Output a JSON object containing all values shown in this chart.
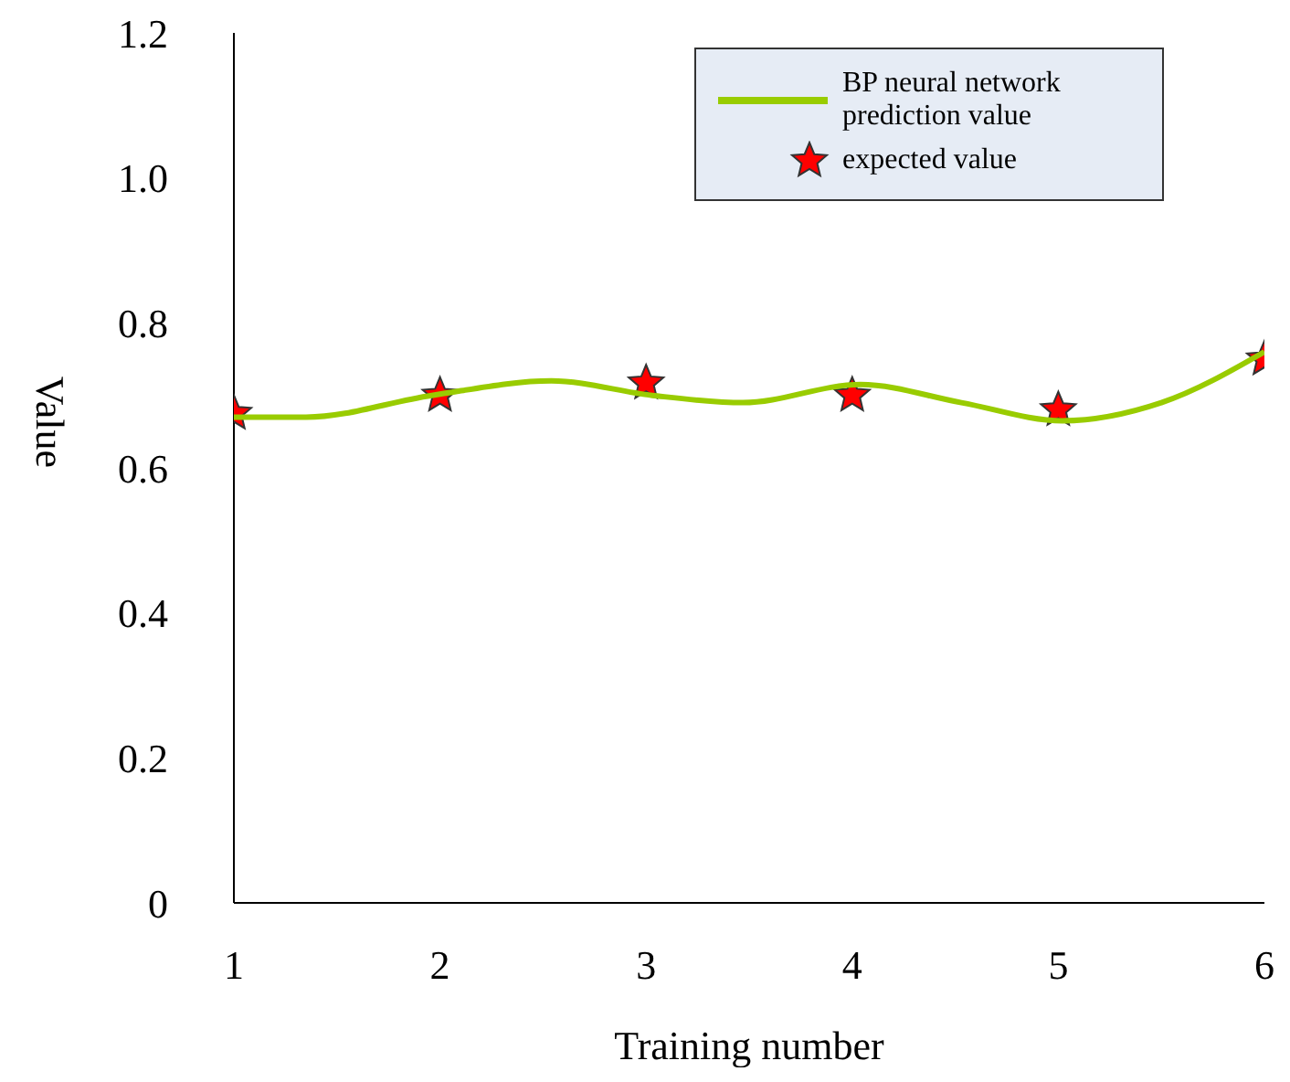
{
  "chart_data": {
    "type": "line",
    "xlabel": "Training number",
    "ylabel": "Value",
    "xlim": [
      1,
      6
    ],
    "xticks": [
      1,
      2,
      3,
      4,
      5,
      6
    ],
    "ylim": [
      0,
      1.2
    ],
    "yticks": [
      0,
      {
        "value": 0.2,
        "label": "0.2"
      },
      {
        "value": 0.4,
        "label": "0.4"
      },
      {
        "value": 0.6,
        "label": "0.6"
      },
      {
        "value": 0.8,
        "label": "0.8"
      },
      {
        "value": 1,
        "label": "1.0"
      },
      {
        "value": 1.2,
        "label": "1.2"
      }
    ],
    "legend": "top right",
    "series": [
      {
        "name": "BP neural network prediction value",
        "color": "#99cc00",
        "marker": "none",
        "x": [
          1,
          1.35,
          1.96,
          2.54,
          3.03,
          3.47,
          4.04,
          4.53,
          5.02,
          5.5,
          6
        ],
        "values": [
          0.67,
          0.67,
          0.7,
          0.72,
          0.7,
          0.69,
          0.715,
          0.69,
          0.665,
          0.69,
          0.76
        ]
      },
      {
        "name": "expected value",
        "type": "scatter",
        "color": "#ff0000",
        "marker": "star",
        "x": [
          1,
          2,
          3,
          4,
          5,
          6
        ],
        "values": [
          0.675,
          0.7,
          0.717,
          0.7,
          0.68,
          0.75
        ]
      }
    ]
  }
}
